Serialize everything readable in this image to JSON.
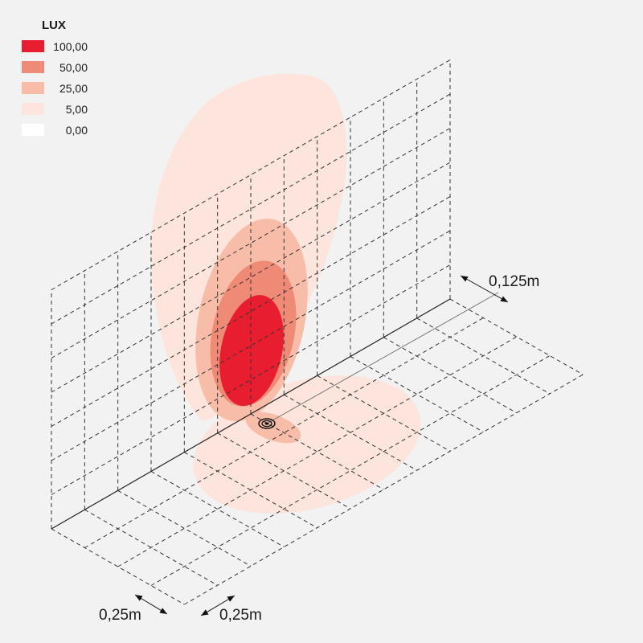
{
  "legend": {
    "title": "LUX",
    "items": [
      {
        "value": "100,00",
        "color": "#e81e30"
      },
      {
        "value": "50,00",
        "color": "#ee8a76"
      },
      {
        "value": "25,00",
        "color": "#f8bda9"
      },
      {
        "value": "5,00",
        "color": "#fde4dc"
      },
      {
        "value": "0,00",
        "color": "#ffffff"
      }
    ]
  },
  "dimensions": {
    "offset": "0,125m",
    "grid_depth": "0,25m",
    "grid_width": "0,25m"
  },
  "colors": {
    "background": "#f2f2f2",
    "grid": "#333333",
    "lamp": "#111111"
  },
  "icons": {
    "light_source": "light-source-icon"
  }
}
